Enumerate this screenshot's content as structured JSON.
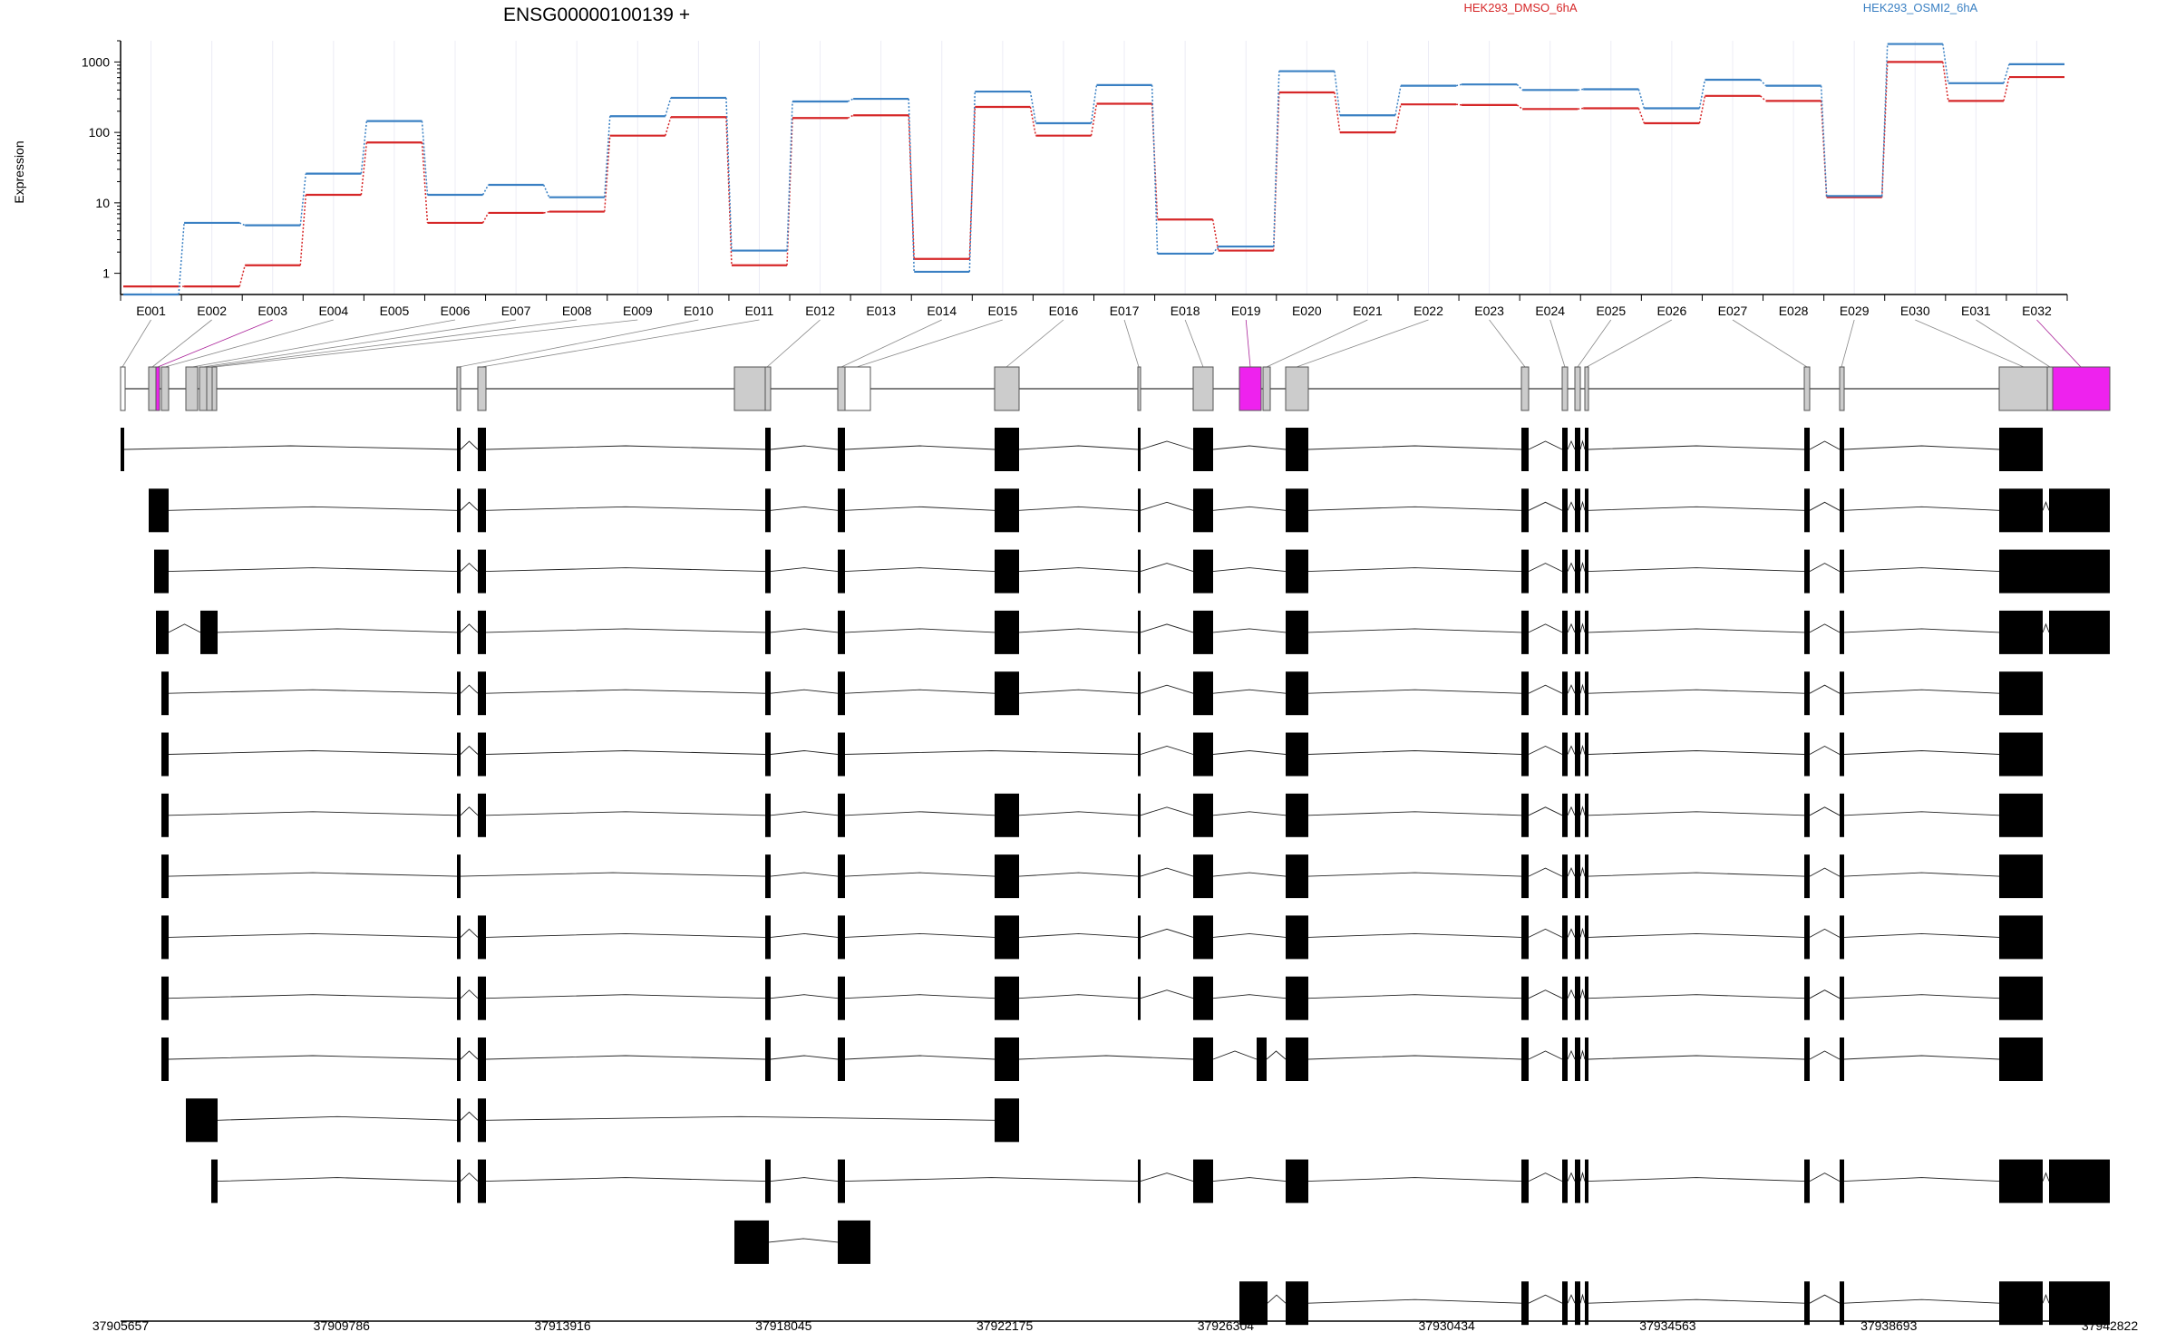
{
  "title": "ENSG00000100139 +",
  "ylabel": "Expression",
  "chart_data": {
    "type": "line",
    "title": "ENSG00000100139 +",
    "ylabel": "Expression",
    "yscale": "log",
    "ylim": [
      0.5,
      2000
    ],
    "yticks": [
      1,
      10,
      100,
      1000
    ],
    "ytick_labels": [
      "1",
      "10",
      "100",
      "1000"
    ],
    "grid": "vertical gridlines at each exon bin",
    "legend_placement": "top-right",
    "categories": [
      "E001",
      "E002",
      "E003",
      "E004",
      "E005",
      "E006",
      "E007",
      "E008",
      "E009",
      "E010",
      "E011",
      "E012",
      "E013",
      "E014",
      "E015",
      "E016",
      "E017",
      "E018",
      "E019",
      "E020",
      "E021",
      "E022",
      "E023",
      "E024",
      "E025",
      "E026",
      "E027",
      "E028",
      "E029",
      "E030",
      "E031",
      "E032"
    ],
    "series": [
      {
        "name": "HEK293_DMSO_6hA",
        "color": "#d62728",
        "values": [
          0.65,
          0.65,
          1.3,
          13,
          72,
          5.2,
          7.2,
          7.5,
          90,
          165,
          1.3,
          160,
          175,
          1.6,
          230,
          90,
          255,
          5.8,
          2.1,
          370,
          100,
          250,
          245,
          215,
          220,
          135,
          330,
          280,
          12,
          1000,
          280,
          610
        ]
      },
      {
        "name": "HEK293_OSMI2_6hA",
        "color": "#3a80c3",
        "values": [
          0.5,
          5.2,
          4.8,
          26,
          145,
          13,
          18,
          12,
          170,
          310,
          2.1,
          275,
          300,
          1.05,
          380,
          135,
          470,
          1.9,
          2.4,
          740,
          175,
          460,
          480,
          400,
          410,
          220,
          560,
          460,
          12.5,
          1800,
          500,
          930
        ]
      }
    ],
    "genome_start": 37905657,
    "genome_end": 37942822,
    "genome_ticks": [
      "37905657",
      "37909786",
      "37913916",
      "37918045",
      "37922175",
      "37926304",
      "37930434",
      "37934563",
      "37938693",
      "37942822"
    ]
  }
}
